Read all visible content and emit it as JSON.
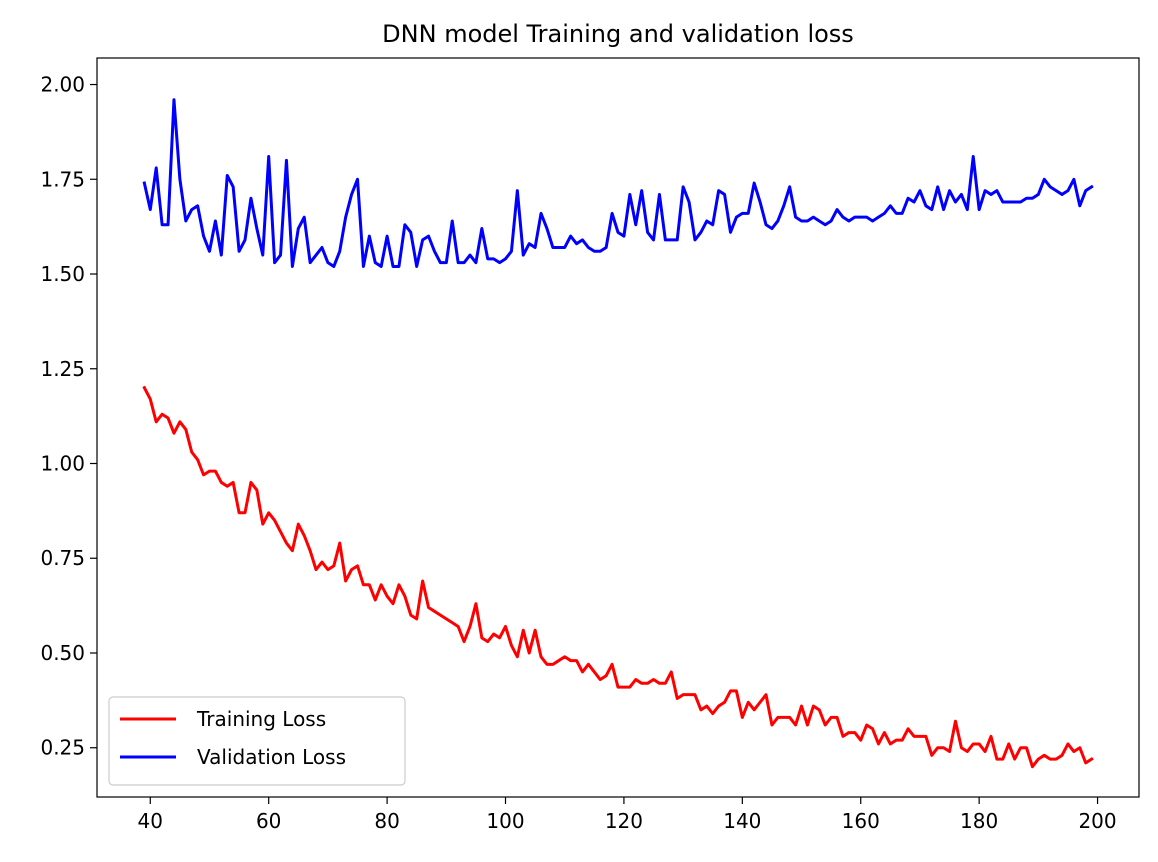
{
  "chart_data": {
    "type": "line",
    "title": "DNN model Training and validation loss",
    "xlabel": "",
    "ylabel": "",
    "xlim": [
      31,
      207
    ],
    "ylim": [
      0.12,
      2.07
    ],
    "xticks": [
      40,
      60,
      80,
      100,
      120,
      140,
      160,
      180,
      200
    ],
    "xtick_labels": [
      "40",
      "60",
      "80",
      "100",
      "120",
      "140",
      "160",
      "180",
      "200"
    ],
    "yticks": [
      0.25,
      0.5,
      0.75,
      1.0,
      1.25,
      1.5,
      1.75,
      2.0
    ],
    "ytick_labels": [
      "0.25",
      "0.50",
      "0.75",
      "1.00",
      "1.25",
      "1.50",
      "1.75",
      "2.00"
    ],
    "grid": false,
    "legend_position": "bottom-left",
    "x": [
      39,
      40,
      41,
      42,
      43,
      44,
      45,
      46,
      47,
      48,
      49,
      50,
      51,
      52,
      53,
      54,
      55,
      56,
      57,
      58,
      59,
      60,
      61,
      62,
      63,
      64,
      65,
      66,
      67,
      68,
      69,
      70,
      71,
      72,
      73,
      74,
      75,
      76,
      77,
      78,
      79,
      80,
      81,
      82,
      83,
      84,
      85,
      86,
      87,
      88,
      89,
      90,
      91,
      92,
      93,
      94,
      95,
      96,
      97,
      98,
      99,
      100,
      101,
      102,
      103,
      104,
      105,
      106,
      107,
      108,
      109,
      110,
      111,
      112,
      113,
      114,
      115,
      116,
      117,
      118,
      119,
      120,
      121,
      122,
      123,
      124,
      125,
      126,
      127,
      128,
      129,
      130,
      131,
      132,
      133,
      134,
      135,
      136,
      137,
      138,
      139,
      140,
      141,
      142,
      143,
      144,
      145,
      146,
      147,
      148,
      149,
      150,
      151,
      152,
      153,
      154,
      155,
      156,
      157,
      158,
      159,
      160,
      161,
      162,
      163,
      164,
      165,
      166,
      167,
      168,
      169,
      170,
      171,
      172,
      173,
      174,
      175,
      176,
      177,
      178,
      179,
      180,
      181,
      182,
      183,
      184,
      185,
      186,
      187,
      188,
      189,
      190,
      191,
      192,
      193,
      194,
      195,
      196,
      197,
      198,
      199
    ],
    "series": [
      {
        "name": "Training Loss",
        "color": "#ff0000",
        "values": [
          1.2,
          1.17,
          1.11,
          1.13,
          1.12,
          1.08,
          1.11,
          1.09,
          1.03,
          1.01,
          0.97,
          0.98,
          0.98,
          0.95,
          0.94,
          0.95,
          0.87,
          0.87,
          0.95,
          0.93,
          0.84,
          0.87,
          0.85,
          0.82,
          0.79,
          0.77,
          0.84,
          0.81,
          0.77,
          0.72,
          0.74,
          0.72,
          0.73,
          0.79,
          0.69,
          0.72,
          0.73,
          0.68,
          0.68,
          0.64,
          0.68,
          0.65,
          0.63,
          0.68,
          0.65,
          0.6,
          0.59,
          0.69,
          0.62,
          0.61,
          0.6,
          0.59,
          0.58,
          0.57,
          0.53,
          0.57,
          0.63,
          0.54,
          0.53,
          0.55,
          0.54,
          0.57,
          0.52,
          0.49,
          0.56,
          0.5,
          0.56,
          0.49,
          0.47,
          0.47,
          0.48,
          0.49,
          0.48,
          0.48,
          0.45,
          0.47,
          0.45,
          0.43,
          0.44,
          0.47,
          0.41,
          0.41,
          0.41,
          0.43,
          0.42,
          0.42,
          0.43,
          0.42,
          0.42,
          0.45,
          0.38,
          0.39,
          0.39,
          0.39,
          0.35,
          0.36,
          0.34,
          0.36,
          0.37,
          0.4,
          0.4,
          0.33,
          0.37,
          0.35,
          0.37,
          0.39,
          0.31,
          0.33,
          0.33,
          0.33,
          0.31,
          0.36,
          0.31,
          0.36,
          0.35,
          0.31,
          0.33,
          0.33,
          0.28,
          0.29,
          0.29,
          0.27,
          0.31,
          0.3,
          0.26,
          0.29,
          0.26,
          0.27,
          0.27,
          0.3,
          0.28,
          0.28,
          0.28,
          0.23,
          0.25,
          0.25,
          0.24,
          0.32,
          0.25,
          0.24,
          0.26,
          0.26,
          0.24,
          0.28,
          0.22,
          0.22,
          0.26,
          0.22,
          0.25,
          0.25,
          0.2,
          0.22,
          0.23,
          0.22,
          0.22,
          0.23,
          0.26,
          0.24,
          0.25,
          0.21,
          0.22
        ]
      },
      {
        "name": "Validation Loss",
        "color": "#0000ff",
        "values": [
          1.74,
          1.67,
          1.78,
          1.63,
          1.63,
          1.96,
          1.75,
          1.64,
          1.67,
          1.68,
          1.6,
          1.56,
          1.64,
          1.55,
          1.76,
          1.73,
          1.56,
          1.59,
          1.7,
          1.62,
          1.55,
          1.81,
          1.53,
          1.55,
          1.8,
          1.52,
          1.62,
          1.65,
          1.53,
          1.55,
          1.57,
          1.53,
          1.52,
          1.56,
          1.65,
          1.71,
          1.75,
          1.52,
          1.6,
          1.53,
          1.52,
          1.6,
          1.52,
          1.52,
          1.63,
          1.61,
          1.52,
          1.59,
          1.6,
          1.56,
          1.53,
          1.53,
          1.64,
          1.53,
          1.53,
          1.55,
          1.53,
          1.62,
          1.54,
          1.54,
          1.53,
          1.54,
          1.56,
          1.72,
          1.55,
          1.58,
          1.57,
          1.66,
          1.62,
          1.57,
          1.57,
          1.57,
          1.6,
          1.58,
          1.59,
          1.57,
          1.56,
          1.56,
          1.57,
          1.66,
          1.61,
          1.6,
          1.71,
          1.63,
          1.72,
          1.61,
          1.59,
          1.71,
          1.59,
          1.59,
          1.59,
          1.73,
          1.69,
          1.59,
          1.61,
          1.64,
          1.63,
          1.72,
          1.71,
          1.61,
          1.65,
          1.66,
          1.66,
          1.74,
          1.69,
          1.63,
          1.62,
          1.64,
          1.68,
          1.73,
          1.65,
          1.64,
          1.64,
          1.65,
          1.64,
          1.63,
          1.64,
          1.67,
          1.65,
          1.64,
          1.65,
          1.65,
          1.65,
          1.64,
          1.65,
          1.66,
          1.68,
          1.66,
          1.66,
          1.7,
          1.69,
          1.72,
          1.68,
          1.67,
          1.73,
          1.67,
          1.72,
          1.69,
          1.71,
          1.67,
          1.81,
          1.67,
          1.72,
          1.71,
          1.72,
          1.69,
          1.69,
          1.69,
          1.69,
          1.7,
          1.7,
          1.71,
          1.75,
          1.73,
          1.72,
          1.71,
          1.72,
          1.75,
          1.68,
          1.72,
          1.73
        ]
      }
    ]
  }
}
